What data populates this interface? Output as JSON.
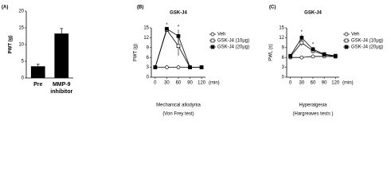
{
  "chart_data": [
    {
      "type": "bar",
      "label": "(A)",
      "ylabel": "PWT (g)",
      "categories": [
        "Pre",
        "MMP-9 inhibitor"
      ],
      "values": [
        3.5,
        13.3
      ],
      "errors": [
        0.6,
        1.5
      ],
      "color": "#000000",
      "ylim": [
        0,
        20
      ],
      "yticks": [
        0,
        5,
        10,
        15,
        20
      ]
    },
    {
      "type": "line",
      "label": "(B)",
      "title": "GSK-J4",
      "ylabel": "PWT (g)",
      "xlabel": "(min)",
      "caption": [
        "Mechanical allodynia",
        "(Von Frey test)"
      ],
      "x": [
        0,
        30,
        60,
        90,
        120
      ],
      "xlim": [
        -10,
        130
      ],
      "xticks": [
        0,
        30,
        60,
        90,
        120
      ],
      "ylim": [
        0,
        15
      ],
      "yticks": [
        0,
        3,
        6,
        9,
        12,
        15
      ],
      "series": [
        {
          "name": "Veh",
          "color": "#000000",
          "marker": "circle",
          "filled": false,
          "values": [
            3,
            3,
            3,
            3,
            3
          ],
          "errors": [
            0.2,
            0.2,
            0.2,
            0.2,
            0.2
          ]
        },
        {
          "name": "GSK-J4 (10μg)",
          "color": "#000000",
          "marker": "square",
          "filled": false,
          "values": [
            3,
            14.4,
            9.5,
            3,
            3
          ],
          "errors": [
            0.2,
            0.6,
            3,
            0.2,
            0.2
          ]
        },
        {
          "name": "GSK-J4 (20μg)",
          "color": "#000000",
          "marker": "square",
          "filled": true,
          "values": [
            3,
            14.7,
            12.5,
            3,
            3
          ],
          "errors": [
            0.2,
            0.4,
            2,
            0.2,
            0.2
          ]
        }
      ],
      "annotations": [
        {
          "text": "*",
          "x": 30
        },
        {
          "text": "*",
          "x": 60
        }
      ]
    },
    {
      "type": "line",
      "label": "(C)",
      "title": "GSK-J4",
      "ylabel": "PWL (s)",
      "xlabel": "(min)",
      "caption": [
        "Hyperalgesia",
        "(Hargreaves tests )"
      ],
      "x": [
        0,
        30,
        60,
        90,
        120
      ],
      "xlim": [
        -10,
        130
      ],
      "xticks": [
        0,
        30,
        60,
        90,
        120
      ],
      "ylim": [
        0,
        15
      ],
      "yticks": [
        0,
        3,
        6,
        9,
        12,
        15
      ],
      "series": [
        {
          "name": "Veh",
          "color": "#000000",
          "marker": "circle",
          "filled": false,
          "values": [
            6,
            6,
            6.3,
            6.3,
            6.3
          ],
          "errors": [
            0.3,
            0.3,
            0.3,
            0.3,
            0.3
          ]
        },
        {
          "name": "GSK-J4 (10μg)",
          "color": "#000000",
          "marker": "square",
          "filled": false,
          "values": [
            6.3,
            10.5,
            8,
            6.8,
            6.3
          ],
          "errors": [
            0.3,
            1,
            0.8,
            0.4,
            0.3
          ]
        },
        {
          "name": "GSK-J4 (20μg)",
          "color": "#000000",
          "marker": "square",
          "filled": true,
          "values": [
            6.5,
            12,
            8.5,
            7,
            6.5
          ],
          "errors": [
            0.3,
            1,
            0.7,
            0.4,
            0.3
          ]
        }
      ],
      "annotations": [
        {
          "text": "*",
          "x": 30
        },
        {
          "text": "*",
          "x": 60
        }
      ]
    }
  ]
}
